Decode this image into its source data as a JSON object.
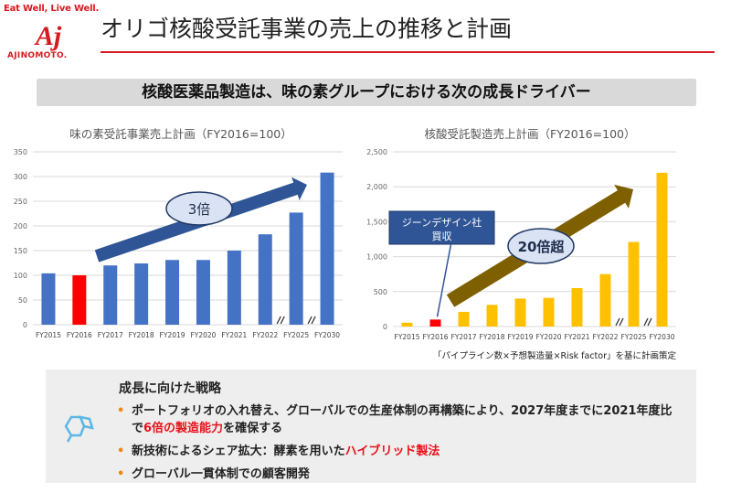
{
  "header": {
    "tagline": "Eat Well, Live Well.",
    "brand": "AJINOMOTO.",
    "logo_text": "Aj",
    "title": "オリゴ核酸受託事業の売上の推移と計画"
  },
  "banner": {
    "text": "核酸医薬品製造は、味の素グループにおける次の成長ドライバー"
  },
  "colors": {
    "brand_red": "#d71920",
    "bar_blue": "#4472c4",
    "bar_gold": "#ffc000",
    "arrow_blue": "#2f5597",
    "arrow_olive": "#7f6000"
  },
  "chart_data": [
    {
      "type": "bar",
      "title": "味の素受託事業売上計画（FY2016=100）",
      "categories": [
        "FY2015",
        "FY2016",
        "FY2017",
        "FY2018",
        "FY2019",
        "FY2020",
        "FY2021",
        "FY2022",
        "FY2025",
        "FY2030"
      ],
      "values": [
        104,
        100,
        120,
        124,
        131,
        131,
        150,
        183,
        227,
        308
      ],
      "highlight_index": 1,
      "ylim": [
        0,
        350
      ],
      "yticks": [
        0,
        50,
        100,
        150,
        200,
        250,
        300,
        350
      ],
      "ytick_labels": [
        "0",
        "50",
        "100",
        "150",
        "200",
        "250",
        "300",
        "350"
      ],
      "axis_breaks_after": [
        7,
        8
      ],
      "arrow_label": "3倍"
    },
    {
      "type": "bar",
      "title": "核酸受託製造売上計画（FY2016=100）",
      "categories": [
        "FY2015",
        "FY2016",
        "FY2017",
        "FY2018",
        "FY2019",
        "FY2020",
        "FY2021",
        "FY2022",
        "FY2025",
        "FY2030"
      ],
      "values": [
        55,
        100,
        210,
        310,
        400,
        410,
        550,
        750,
        1210,
        2200
      ],
      "highlight_index": 1,
      "ylim": [
        0,
        2500
      ],
      "yticks": [
        0,
        500,
        1000,
        1500,
        2000,
        2500
      ],
      "ytick_labels": [
        "0",
        "500",
        "1,000",
        "1,500",
        "2,000",
        "2,500"
      ],
      "axis_breaks_after": [
        7,
        8
      ],
      "arrow_label": "20倍超",
      "callout": "ジーンデザイン社\n買収",
      "note": "「パイプライン数×予想製造量×Risk factor」を基に計画策定"
    }
  ],
  "strategy": {
    "heading": "成長に向けた戦略",
    "item1_pre": "ポートフォリオの入れ替え、グローバルでの生産体制の再構築により、2027年度までに2021年度比で",
    "item1_hl": "6倍の製造能力",
    "item1_post": "を確保する",
    "item2_pre": "新技術によるシェア拡大：酵素を用いた",
    "item2_hl": "ハイブリッド製法",
    "item3": "グローバル一貫体制での顧客開発"
  }
}
